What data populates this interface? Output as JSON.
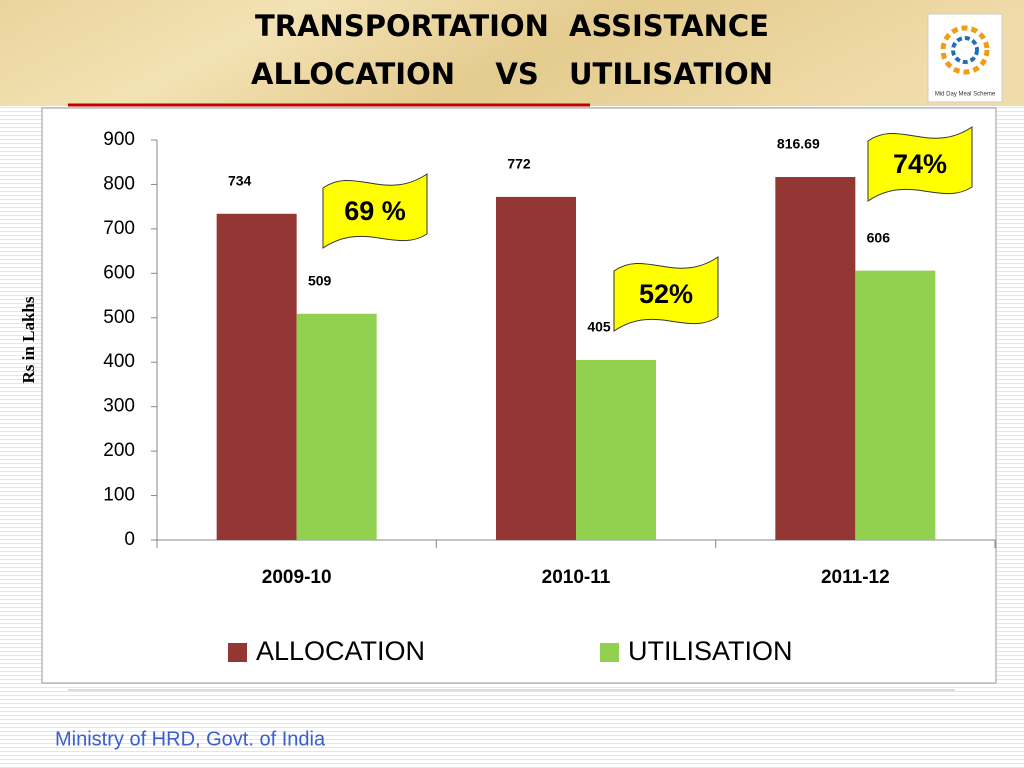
{
  "chart_data": {
    "type": "bar",
    "title": [
      "TRANSPORTATION  ASSISTANCE",
      "ALLOCATION    VS   UTILISATION"
    ],
    "ylabel": "Rs in Lakhs",
    "categories": [
      "2009-10",
      "2010-11",
      "2011-12"
    ],
    "series": [
      {
        "name": "ALLOCATION",
        "color": "#943634",
        "values": [
          734,
          772,
          816.69
        ]
      },
      {
        "name": "UTILISATION",
        "color": "#92d050",
        "values": [
          509,
          405,
          606
        ]
      }
    ],
    "ylim": [
      0,
      900
    ],
    "yticks": [
      0,
      100,
      200,
      300,
      400,
      500,
      600,
      700,
      800,
      900
    ],
    "legend": "bottom",
    "annotations": [
      "69 %",
      "52%",
      "74%"
    ]
  },
  "logo_text": "Mid Day Meal Scheme",
  "footer": "Ministry of HRD, Govt. of India"
}
